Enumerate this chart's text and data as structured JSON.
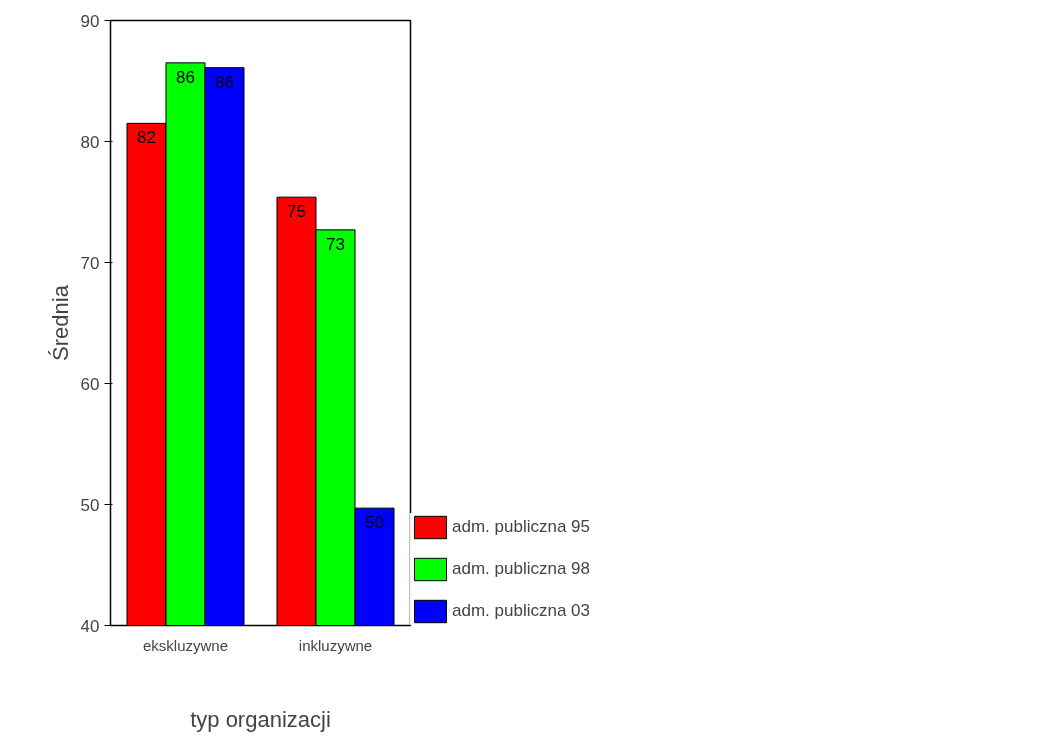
{
  "chart_data": {
    "type": "bar",
    "xlabel": "typ organizacji",
    "ylabel": "Średnia",
    "categories": [
      "ekskluzywne",
      "inkluzywne"
    ],
    "series": [
      {
        "name": "adm. publiczna 95",
        "color": "#ff0000",
        "values": [
          81.5,
          75.4
        ],
        "value_labels": [
          "82",
          "75"
        ]
      },
      {
        "name": "adm. publiczna 98",
        "color": "#00ff00",
        "values": [
          86.5,
          72.7
        ],
        "value_labels": [
          "86",
          "73"
        ]
      },
      {
        "name": "adm. publiczna 03",
        "color": "#0000ff",
        "values": [
          86.1,
          49.7
        ],
        "value_labels": [
          "86",
          "50"
        ]
      }
    ],
    "ylim": [
      40,
      90
    ],
    "yticks": [
      40,
      50,
      60,
      70,
      80,
      90
    ],
    "grid": false,
    "legend": "bottom right"
  }
}
